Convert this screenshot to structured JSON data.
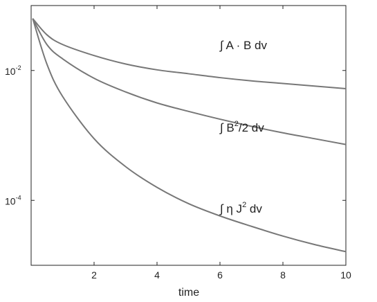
{
  "chart_data": {
    "type": "line",
    "title": "",
    "xlabel": "time",
    "ylabel": "",
    "xlim": [
      0,
      10
    ],
    "ylog": true,
    "ylim_log10": [
      -5.0,
      -1.0
    ],
    "grid": false,
    "legend": "none",
    "x_ticks": [
      "2",
      "4",
      "6",
      "8",
      "10"
    ],
    "x_tick_values": [
      2,
      4,
      6,
      8,
      10
    ],
    "y_ticks": [
      {
        "base": "10",
        "exp": "-2",
        "log10_value": -2
      },
      {
        "base": "10",
        "exp": "-4",
        "log10_value": -4
      }
    ],
    "series": [
      {
        "label_prefix": "∫ A · B dv",
        "label_sup": "",
        "label_suffix": "",
        "color": "#777777",
        "x": [
          0.05,
          0.5,
          1,
          2,
          3,
          4,
          5,
          6,
          7,
          8,
          9,
          10
        ],
        "log10_y": [
          -1.2,
          -1.45,
          -1.6,
          -1.77,
          -1.9,
          -1.99,
          -2.05,
          -2.11,
          -2.16,
          -2.2,
          -2.24,
          -2.28
        ]
      },
      {
        "label_prefix": "∫  B",
        "label_sup": "2",
        "label_suffix": "/2 dv",
        "color": "#777777",
        "x": [
          0.05,
          0.5,
          1,
          2,
          3,
          4,
          5,
          6,
          7,
          8,
          9,
          10
        ],
        "log10_y": [
          -1.2,
          -1.6,
          -1.82,
          -2.12,
          -2.33,
          -2.5,
          -2.63,
          -2.75,
          -2.86,
          -2.96,
          -3.05,
          -3.14
        ]
      },
      {
        "label_prefix": "∫ η J",
        "label_sup": "2",
        "label_suffix": " dv",
        "color": "#777777",
        "x": [
          0.05,
          0.5,
          1,
          2,
          3,
          4,
          5,
          6,
          7,
          8,
          9,
          10
        ],
        "log10_y": [
          -1.2,
          -1.9,
          -2.4,
          -3.05,
          -3.48,
          -3.8,
          -4.05,
          -4.24,
          -4.4,
          -4.55,
          -4.68,
          -4.79
        ]
      }
    ]
  }
}
